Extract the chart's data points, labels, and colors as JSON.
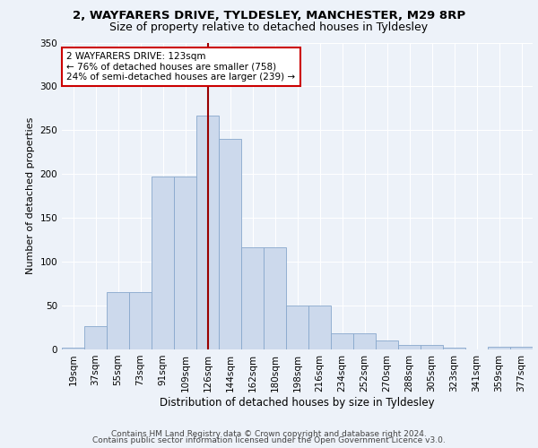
{
  "title1": "2, WAYFARERS DRIVE, TYLDESLEY, MANCHESTER, M29 8RP",
  "title2": "Size of property relative to detached houses in Tyldesley",
  "xlabel": "Distribution of detached houses by size in Tyldesley",
  "ylabel": "Number of detached properties",
  "categories": [
    "19sqm",
    "37sqm",
    "55sqm",
    "73sqm",
    "91sqm",
    "109sqm",
    "126sqm",
    "144sqm",
    "162sqm",
    "180sqm",
    "198sqm",
    "216sqm",
    "234sqm",
    "252sqm",
    "270sqm",
    "288sqm",
    "305sqm",
    "323sqm",
    "341sqm",
    "359sqm",
    "377sqm"
  ],
  "values": [
    2,
    27,
    65,
    65,
    197,
    197,
    267,
    240,
    117,
    117,
    50,
    50,
    18,
    18,
    10,
    5,
    5,
    2,
    0,
    3,
    3
  ],
  "bar_width": 1.0,
  "bar_color": "#ccd9ec",
  "bar_edge_color": "#88a8cc",
  "vline_x": 6.0,
  "vline_color": "#990000",
  "annotation_text": "2 WAYFARERS DRIVE: 123sqm\n← 76% of detached houses are smaller (758)\n24% of semi-detached houses are larger (239) →",
  "annotation_box_color": "white",
  "annotation_box_edge_color": "#cc0000",
  "ylim": [
    0,
    350
  ],
  "yticks": [
    0,
    50,
    100,
    150,
    200,
    250,
    300,
    350
  ],
  "footer1": "Contains HM Land Registry data © Crown copyright and database right 2024.",
  "footer2": "Contains public sector information licensed under the Open Government Licence v3.0.",
  "bg_color": "#edf2f9",
  "plot_bg_color": "#edf2f9",
  "title1_fontsize": 9.5,
  "title2_fontsize": 9,
  "xlabel_fontsize": 8.5,
  "ylabel_fontsize": 8,
  "tick_fontsize": 7.5,
  "annotation_fontsize": 7.5,
  "footer_fontsize": 6.5
}
